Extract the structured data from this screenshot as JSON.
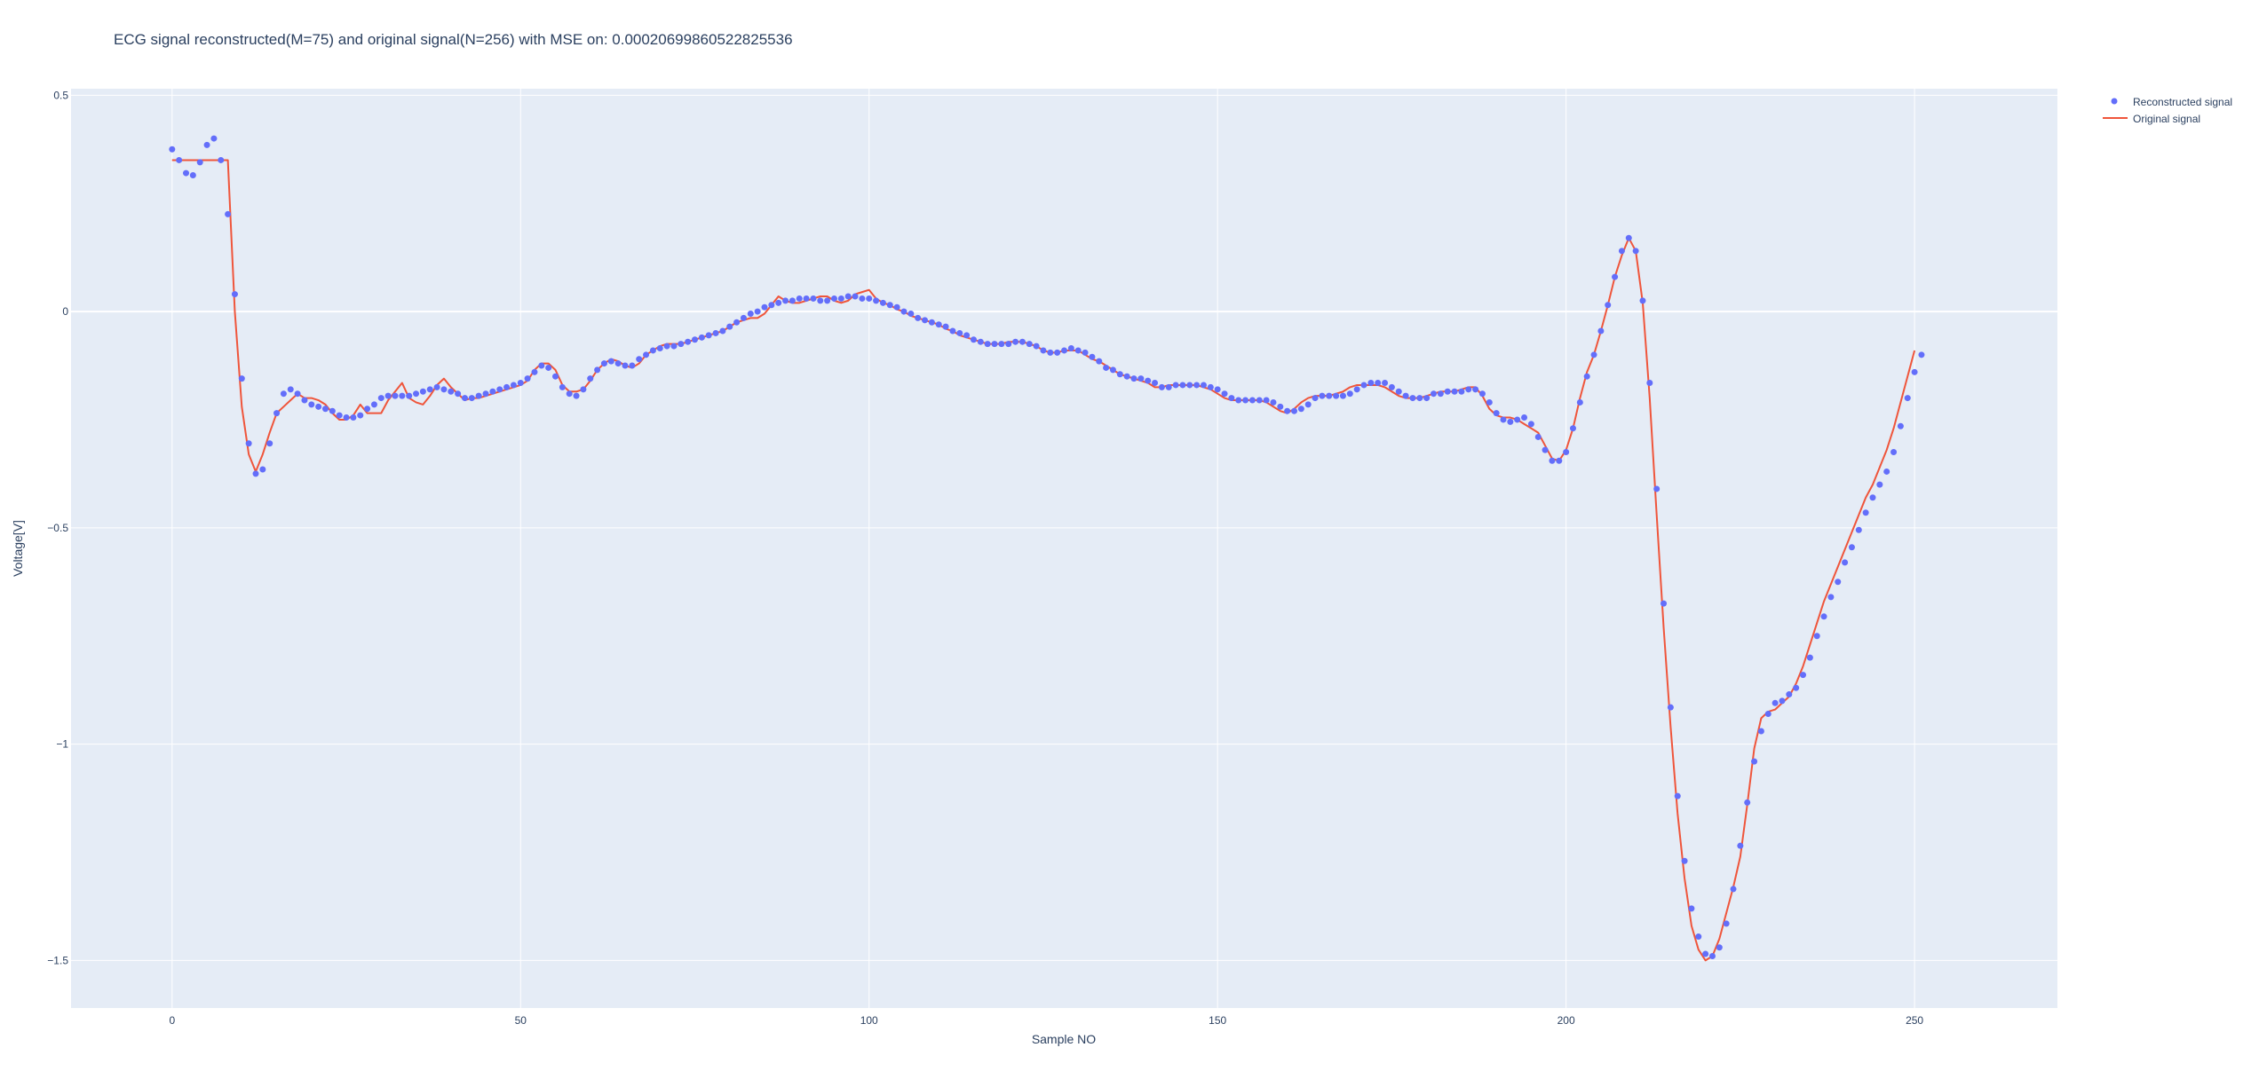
{
  "chart_data": {
    "type": "scatter",
    "title": "ECG signal reconstructed(M=75) and original signal(N=256) with MSE on: 0.00020699860522825536",
    "xlabel": "Sample NO",
    "ylabel": "Voltage[V]",
    "xlim": [
      -14.5,
      270.5
    ],
    "ylim": [
      -1.61,
      0.515
    ],
    "x_ticks": [
      0,
      50,
      100,
      150,
      200,
      250
    ],
    "x_tick_labels": [
      "0",
      "50",
      "100",
      "150",
      "200",
      "250"
    ],
    "y_ticks": [
      0.5,
      0,
      -0.5,
      -1,
      -1.5
    ],
    "y_tick_labels": [
      "0.5",
      "0",
      "−0.5",
      "−1",
      "−1.5"
    ],
    "grid": true,
    "legend_position": "top-right, outside plot",
    "series": [
      {
        "name": "Reconstructed signal",
        "mode": "markers",
        "color": "#636efa",
        "x_start": 0,
        "values": [
          0.375,
          0.35,
          0.32,
          0.315,
          0.345,
          0.385,
          0.4,
          0.35,
          0.225,
          0.04,
          -0.155,
          -0.305,
          -0.375,
          -0.365,
          -0.305,
          -0.235,
          -0.19,
          -0.18,
          -0.19,
          -0.205,
          -0.215,
          -0.22,
          -0.225,
          -0.23,
          -0.24,
          -0.245,
          -0.245,
          -0.24,
          -0.225,
          -0.215,
          -0.2,
          -0.195,
          -0.195,
          -0.195,
          -0.195,
          -0.19,
          -0.185,
          -0.18,
          -0.175,
          -0.18,
          -0.185,
          -0.19,
          -0.2,
          -0.2,
          -0.195,
          -0.19,
          -0.185,
          -0.18,
          -0.175,
          -0.17,
          -0.165,
          -0.155,
          -0.14,
          -0.125,
          -0.13,
          -0.15,
          -0.175,
          -0.19,
          -0.195,
          -0.18,
          -0.155,
          -0.135,
          -0.12,
          -0.115,
          -0.12,
          -0.125,
          -0.125,
          -0.11,
          -0.1,
          -0.09,
          -0.085,
          -0.08,
          -0.08,
          -0.075,
          -0.07,
          -0.065,
          -0.06,
          -0.055,
          -0.05,
          -0.045,
          -0.035,
          -0.025,
          -0.015,
          -0.005,
          0.0,
          0.01,
          0.015,
          0.02,
          0.025,
          0.025,
          0.03,
          0.03,
          0.03,
          0.025,
          0.025,
          0.03,
          0.03,
          0.035,
          0.035,
          0.03,
          0.03,
          0.025,
          0.02,
          0.015,
          0.01,
          0.0,
          -0.005,
          -0.015,
          -0.02,
          -0.025,
          -0.03,
          -0.035,
          -0.045,
          -0.05,
          -0.055,
          -0.065,
          -0.07,
          -0.075,
          -0.075,
          -0.075,
          -0.075,
          -0.07,
          -0.07,
          -0.075,
          -0.08,
          -0.09,
          -0.095,
          -0.095,
          -0.09,
          -0.085,
          -0.09,
          -0.095,
          -0.105,
          -0.115,
          -0.13,
          -0.135,
          -0.145,
          -0.15,
          -0.155,
          -0.155,
          -0.16,
          -0.165,
          -0.175,
          -0.175,
          -0.17,
          -0.17,
          -0.17,
          -0.17,
          -0.17,
          -0.175,
          -0.18,
          -0.19,
          -0.2,
          -0.205,
          -0.205,
          -0.205,
          -0.205,
          -0.205,
          -0.21,
          -0.22,
          -0.23,
          -0.23,
          -0.225,
          -0.215,
          -0.2,
          -0.195,
          -0.195,
          -0.195,
          -0.195,
          -0.19,
          -0.18,
          -0.17,
          -0.165,
          -0.165,
          -0.165,
          -0.175,
          -0.185,
          -0.195,
          -0.2,
          -0.2,
          -0.2,
          -0.19,
          -0.19,
          -0.185,
          -0.185,
          -0.185,
          -0.18,
          -0.18,
          -0.19,
          -0.21,
          -0.235,
          -0.25,
          -0.255,
          -0.25,
          -0.245,
          -0.26,
          -0.29,
          -0.32,
          -0.345,
          -0.345,
          -0.325,
          -0.27,
          -0.21,
          -0.15,
          -0.1,
          -0.045,
          0.015,
          0.08,
          0.14,
          0.17,
          0.14,
          0.025,
          -0.165,
          -0.41,
          -0.675,
          -0.915,
          -1.12,
          -1.27,
          -1.38,
          -1.445,
          -1.485,
          -1.49,
          -1.47,
          -1.415,
          -1.335,
          -1.235,
          -1.135,
          -1.04,
          -0.97,
          -0.93,
          -0.905,
          -0.9,
          -0.885,
          -0.87,
          -0.84,
          -0.8,
          -0.75,
          -0.705,
          -0.66,
          -0.625,
          -0.58,
          -0.545,
          -0.505,
          -0.465,
          -0.43,
          -0.4,
          -0.37,
          -0.325,
          -0.265,
          -0.2,
          -0.14,
          -0.1
        ]
      },
      {
        "name": "Original signal",
        "mode": "lines",
        "color": "#ef553b",
        "x_start": 0,
        "values": [
          0.35,
          0.35,
          0.35,
          0.35,
          0.35,
          0.35,
          0.35,
          0.35,
          0.35,
          0.0,
          -0.22,
          -0.33,
          -0.37,
          -0.33,
          -0.28,
          -0.235,
          -0.22,
          -0.205,
          -0.19,
          -0.2,
          -0.2,
          -0.205,
          -0.215,
          -0.235,
          -0.25,
          -0.25,
          -0.24,
          -0.215,
          -0.235,
          -0.235,
          -0.235,
          -0.205,
          -0.185,
          -0.165,
          -0.2,
          -0.21,
          -0.215,
          -0.195,
          -0.17,
          -0.155,
          -0.175,
          -0.19,
          -0.205,
          -0.2,
          -0.2,
          -0.195,
          -0.19,
          -0.185,
          -0.18,
          -0.175,
          -0.17,
          -0.16,
          -0.135,
          -0.12,
          -0.12,
          -0.135,
          -0.17,
          -0.185,
          -0.185,
          -0.18,
          -0.16,
          -0.135,
          -0.12,
          -0.11,
          -0.115,
          -0.125,
          -0.13,
          -0.12,
          -0.1,
          -0.09,
          -0.08,
          -0.075,
          -0.075,
          -0.075,
          -0.07,
          -0.065,
          -0.06,
          -0.055,
          -0.05,
          -0.045,
          -0.035,
          -0.025,
          -0.02,
          -0.015,
          -0.015,
          -0.005,
          0.015,
          0.035,
          0.025,
          0.02,
          0.02,
          0.025,
          0.03,
          0.035,
          0.035,
          0.025,
          0.02,
          0.025,
          0.04,
          0.045,
          0.05,
          0.03,
          0.02,
          0.015,
          0.005,
          0.0,
          -0.01,
          -0.015,
          -0.02,
          -0.025,
          -0.03,
          -0.04,
          -0.045,
          -0.055,
          -0.06,
          -0.065,
          -0.07,
          -0.075,
          -0.075,
          -0.075,
          -0.07,
          -0.07,
          -0.07,
          -0.075,
          -0.08,
          -0.09,
          -0.095,
          -0.095,
          -0.09,
          -0.09,
          -0.09,
          -0.1,
          -0.11,
          -0.115,
          -0.125,
          -0.135,
          -0.145,
          -0.15,
          -0.155,
          -0.16,
          -0.165,
          -0.175,
          -0.175,
          -0.17,
          -0.17,
          -0.17,
          -0.17,
          -0.17,
          -0.175,
          -0.18,
          -0.19,
          -0.2,
          -0.205,
          -0.205,
          -0.205,
          -0.205,
          -0.205,
          -0.21,
          -0.22,
          -0.23,
          -0.235,
          -0.225,
          -0.21,
          -0.2,
          -0.195,
          -0.195,
          -0.195,
          -0.19,
          -0.185,
          -0.175,
          -0.17,
          -0.17,
          -0.17,
          -0.17,
          -0.175,
          -0.185,
          -0.195,
          -0.2,
          -0.2,
          -0.2,
          -0.195,
          -0.19,
          -0.185,
          -0.185,
          -0.185,
          -0.18,
          -0.175,
          -0.175,
          -0.195,
          -0.225,
          -0.24,
          -0.245,
          -0.245,
          -0.25,
          -0.26,
          -0.27,
          -0.28,
          -0.31,
          -0.34,
          -0.345,
          -0.32,
          -0.27,
          -0.2,
          -0.14,
          -0.1,
          -0.045,
          0.015,
          0.08,
          0.13,
          0.17,
          0.14,
          0.02,
          -0.2,
          -0.47,
          -0.73,
          -0.96,
          -1.16,
          -1.31,
          -1.42,
          -1.475,
          -1.5,
          -1.49,
          -1.45,
          -1.39,
          -1.33,
          -1.26,
          -1.14,
          -1.01,
          -0.94,
          -0.925,
          -0.92,
          -0.905,
          -0.89,
          -0.86,
          -0.82,
          -0.77,
          -0.72,
          -0.67,
          -0.63,
          -0.59,
          -0.55,
          -0.51,
          -0.47,
          -0.43,
          -0.4,
          -0.36,
          -0.32,
          -0.27,
          -0.21,
          -0.15,
          -0.09
        ]
      }
    ]
  }
}
